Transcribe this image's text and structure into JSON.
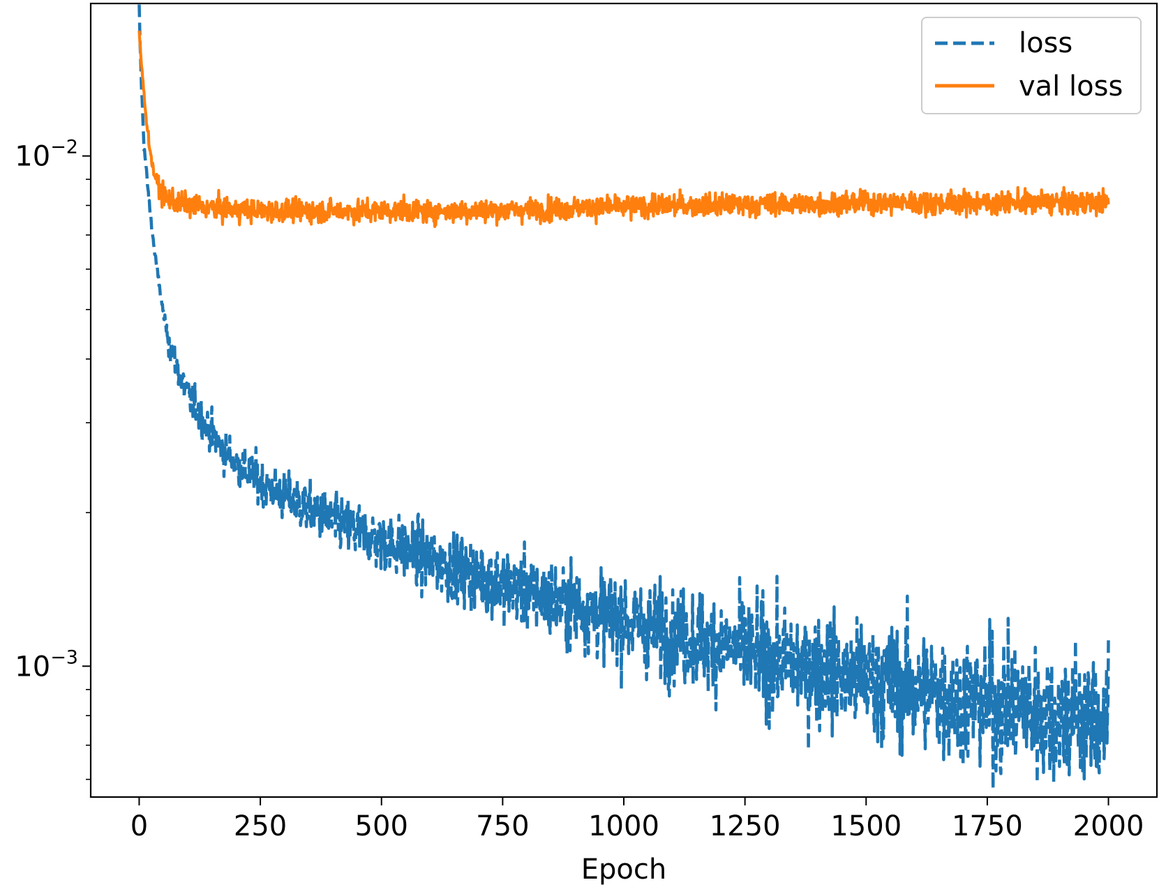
{
  "chart_data": {
    "type": "line",
    "title": "",
    "xlabel": "Epoch",
    "ylabel": "",
    "yscale": "log",
    "xlim": [
      -100,
      2100
    ],
    "ylim": [
      0.000554,
      0.0199
    ],
    "grid": false,
    "legend_position": "top-right",
    "x_ticks": [
      0,
      250,
      500,
      750,
      1000,
      1250,
      1500,
      1750,
      2000
    ],
    "x_tick_labels": [
      "0",
      "250",
      "500",
      "750",
      "1000",
      "1250",
      "1500",
      "1750",
      "2000"
    ],
    "y_major_ticks": [
      {
        "value": 0.01,
        "base": "10",
        "exponent": "−2"
      },
      {
        "value": 0.001,
        "base": "10",
        "exponent": "−3"
      }
    ],
    "y_minor_ticks": [
      0.0006,
      0.0007,
      0.0008,
      0.0009,
      0.002,
      0.003,
      0.004,
      0.005,
      0.006,
      0.007,
      0.008,
      0.009,
      0.02
    ],
    "series": [
      {
        "name": "loss",
        "color": "#1f77b4",
        "style": "dashed",
        "x": [
          0,
          2,
          5,
          10,
          20,
          30,
          40,
          50,
          60,
          80,
          100,
          125,
          150,
          175,
          200,
          250,
          300,
          350,
          400,
          450,
          500,
          550,
          600,
          650,
          700,
          750,
          800,
          850,
          900,
          950,
          1000,
          1050,
          1100,
          1150,
          1200,
          1250,
          1300,
          1350,
          1400,
          1450,
          1500,
          1550,
          1600,
          1650,
          1700,
          1750,
          1800,
          1850,
          1900,
          1950,
          2000
        ],
        "y": [
          0.0195,
          0.0165,
          0.0135,
          0.0105,
          0.0082,
          0.0067,
          0.0057,
          0.0049,
          0.0044,
          0.0038,
          0.0034,
          0.0031,
          0.00285,
          0.00265,
          0.0025,
          0.0023,
          0.00215,
          0.00203,
          0.00193,
          0.00184,
          0.00176,
          0.00169,
          0.00162,
          0.00156,
          0.0015,
          0.00145,
          0.0014,
          0.00135,
          0.00131,
          0.00127,
          0.00123,
          0.00119,
          0.00116,
          0.00113,
          0.0011,
          0.00107,
          0.00104,
          0.00101,
          0.00099,
          0.00096,
          0.00094,
          0.00092,
          0.0009,
          0.00088,
          0.00086,
          0.00085,
          0.00083,
          0.00082,
          0.0008,
          0.00079,
          0.00078
        ]
      },
      {
        "name": "val loss",
        "color": "#ff7f0e",
        "style": "solid",
        "x": [
          0,
          2,
          5,
          10,
          15,
          20,
          25,
          30,
          40,
          50,
          60,
          80,
          100,
          150,
          200,
          250,
          300,
          400,
          500,
          600,
          700,
          800,
          900,
          1000,
          1100,
          1200,
          1300,
          1400,
          1500,
          1600,
          1700,
          1800,
          1900,
          2000
        ],
        "y": [
          0.0175,
          0.0165,
          0.015,
          0.0132,
          0.0118,
          0.0107,
          0.0099,
          0.0093,
          0.0087,
          0.0084,
          0.0082,
          0.0081,
          0.008,
          0.0079,
          0.00785,
          0.0078,
          0.0078,
          0.0078,
          0.0078,
          0.0078,
          0.0078,
          0.00785,
          0.0079,
          0.00795,
          0.008,
          0.008,
          0.00805,
          0.00805,
          0.0081,
          0.0081,
          0.0081,
          0.0081,
          0.0081,
          0.0081
        ]
      }
    ]
  }
}
